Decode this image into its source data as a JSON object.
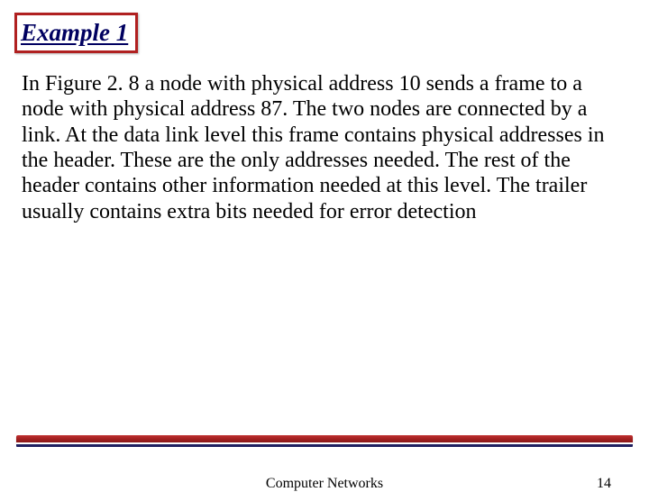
{
  "slide": {
    "title": "Example 1",
    "body": "In Figure 2. 8 a node with physical address 10 sends a frame to a node with physical address 87. The two nodes are connected by a link. At the data link level this frame contains physical addresses in the header. These are the only addresses needed. The rest of the header contains other information needed at this level. The trailer usually contains extra bits needed for error detection",
    "footer_title": "Computer Networks",
    "page_number": "14"
  },
  "styling": {
    "title_border_color": "#b02020",
    "title_text_color": "#000060",
    "title_fontsize": 27,
    "title_font_style": "italic bold",
    "body_fontsize": 24,
    "body_color": "#000000",
    "divider_red": "#b02020",
    "divider_navy": "#202060",
    "background": "#ffffff",
    "footer_fontsize": 16,
    "slide_width": 720,
    "slide_height": 540
  }
}
